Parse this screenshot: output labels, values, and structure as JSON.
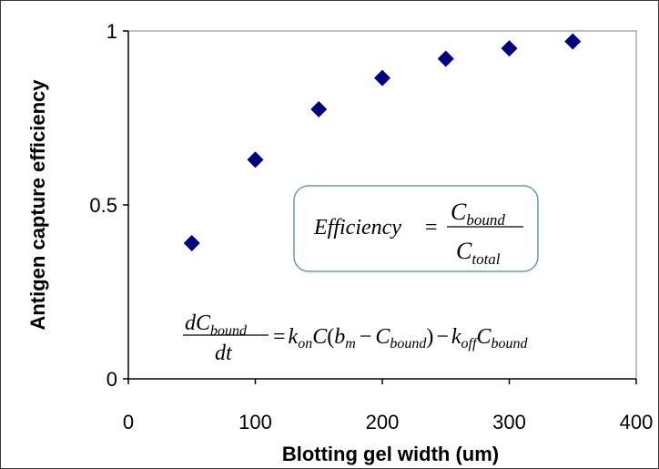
{
  "chart_data": {
    "type": "scatter",
    "title": "",
    "xlabel": "Blotting gel width (um)",
    "ylabel": "Antigen capture efficiency",
    "xlim": [
      0,
      400
    ],
    "ylim": [
      0,
      1
    ],
    "x_ticks": [
      "0",
      "100",
      "200",
      "300",
      "400"
    ],
    "y_ticks": [
      "0",
      "0.5",
      "1"
    ],
    "grid": false,
    "marker": "diamond",
    "color": "#000080",
    "series": [
      {
        "x": [
          50,
          100,
          150,
          200,
          250,
          300,
          350
        ],
        "y": [
          0.39,
          0.63,
          0.775,
          0.865,
          0.92,
          0.95,
          0.97
        ]
      }
    ],
    "annotations": {
      "efficiency_formula": {
        "lhs": "Efficiency",
        "equals": "=",
        "num_base": "C",
        "num_sub": "bound",
        "den_base": "C",
        "den_sub": "total"
      },
      "rate_equation": {
        "frac_num": "dC",
        "frac_num_sub": "bound",
        "frac_den": "dt",
        "equals": "=",
        "k": "k",
        "kon_sub": "on",
        "c": "C",
        "open_paren": "(",
        "b": "b",
        "bm_sub": "m",
        "minus": "−",
        "cbound_sub": "bound",
        "close_paren": ")",
        "koff_sub": "off"
      }
    }
  }
}
